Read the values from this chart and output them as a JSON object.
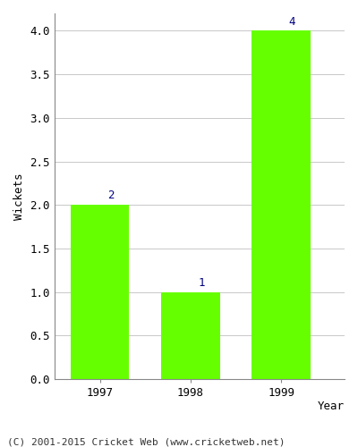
{
  "categories": [
    "1997",
    "1998",
    "1999"
  ],
  "values": [
    2,
    1,
    4
  ],
  "bar_color": "#66ff00",
  "bar_edge_color": "#66ff00",
  "ylabel": "Wickets",
  "xlabel_text": "Year",
  "ylim": [
    0,
    4.2
  ],
  "yticks": [
    0.0,
    0.5,
    1.0,
    1.5,
    2.0,
    2.5,
    3.0,
    3.5,
    4.0
  ],
  "label_color": "#000080",
  "label_fontsize": 9,
  "axis_label_fontsize": 9,
  "tick_fontsize": 9,
  "footer_text": "(C) 2001-2015 Cricket Web (www.cricketweb.net)",
  "footer_fontsize": 8,
  "background_color": "#ffffff",
  "grid_color": "#c8c8c8"
}
